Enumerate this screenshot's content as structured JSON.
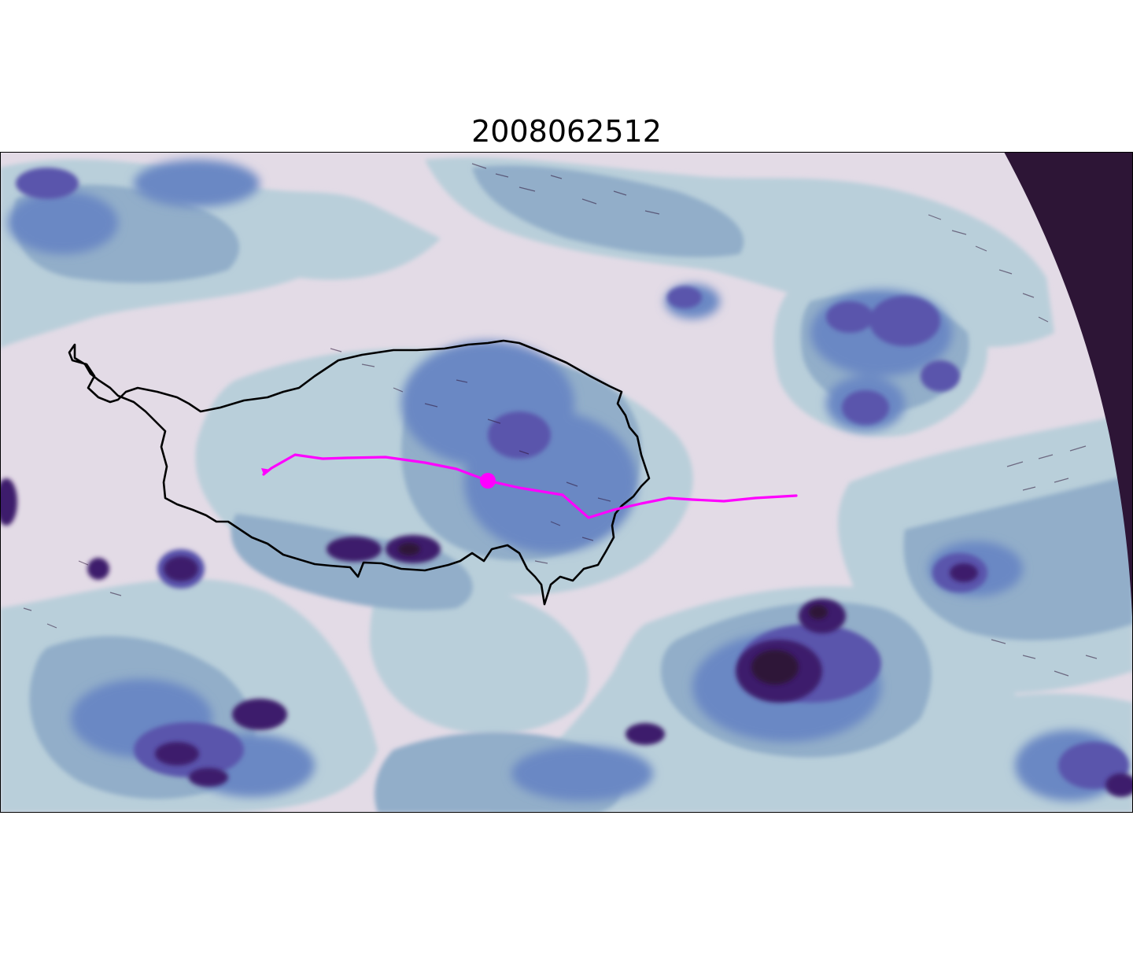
{
  "figure": {
    "title": "2008062512"
  },
  "colors": {
    "clear_sky": "#e3dbe6",
    "level_1": "#b9cfda",
    "level_2": "#92aec9",
    "level_3": "#6a88c4",
    "level_4": "#5a54ac",
    "level_5": "#3e1d6c",
    "level_6": "#2e1538",
    "space": "#2d1536",
    "boundary": "#000000",
    "track": "#ff00ff"
  },
  "layers": {
    "boundary_outline": "plateau-boundary",
    "track": "storm-track",
    "marker": "current-position"
  }
}
